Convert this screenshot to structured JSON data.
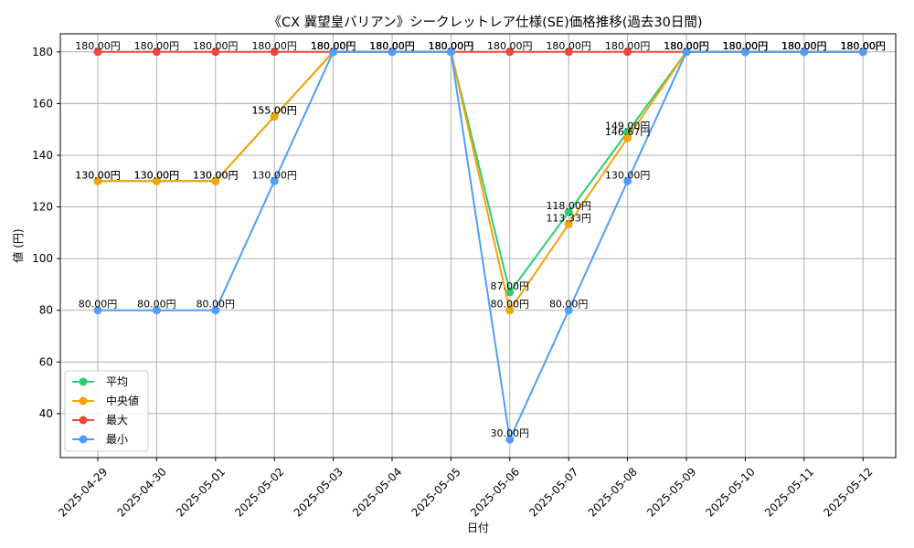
{
  "chart_data": {
    "type": "line",
    "title": "《CX 冀望皇バリアン》シークレットレア仕様(SE)価格推移(過去30日間)",
    "xlabel": "日付",
    "ylabel": "値 (円)",
    "ylim": [
      23,
      187
    ],
    "yticks": [
      40,
      60,
      80,
      100,
      120,
      140,
      160,
      180
    ],
    "grid": true,
    "legend_position": "lower-left",
    "label_suffix": "円",
    "categories": [
      "2025-04-29",
      "2025-04-30",
      "2025-05-01",
      "2025-05-02",
      "2025-05-03",
      "2025-05-04",
      "2025-05-05",
      "2025-05-06",
      "2025-05-07",
      "2025-05-08",
      "2025-05-09",
      "2025-05-10",
      "2025-05-11",
      "2025-05-12"
    ],
    "series": [
      {
        "name": "平均",
        "color": "#2ecc71",
        "values": [
          130,
          130,
          130,
          155,
          180,
          180,
          180,
          87,
          118,
          149,
          180,
          180,
          180,
          180
        ]
      },
      {
        "name": "中央値",
        "color": "#f5a30a",
        "values": [
          130,
          130,
          130,
          155,
          180,
          180,
          180,
          80,
          113.33,
          146.67,
          180,
          180,
          180,
          180
        ]
      },
      {
        "name": "最大",
        "color": "#f0483e",
        "values": [
          180,
          180,
          180,
          180,
          180,
          180,
          180,
          180,
          180,
          180,
          180,
          180,
          180,
          180
        ]
      },
      {
        "name": "最小",
        "color": "#4f9ef8",
        "values": [
          80,
          80,
          80,
          130,
          180,
          180,
          180,
          30,
          80,
          130,
          180,
          180,
          180,
          180
        ]
      }
    ]
  }
}
